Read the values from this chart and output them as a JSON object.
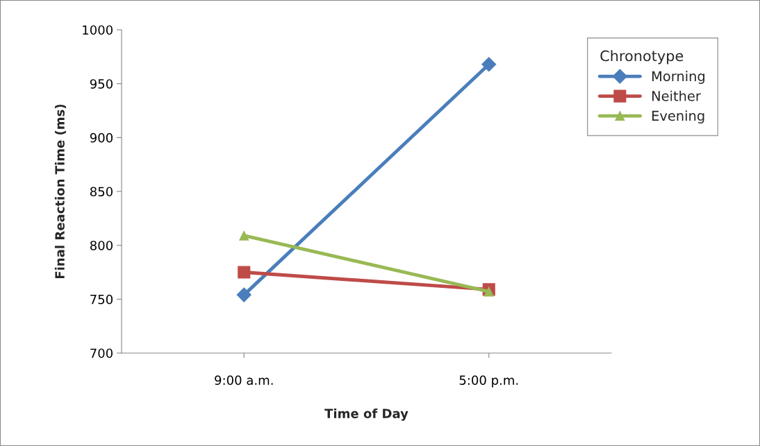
{
  "chart_data": {
    "type": "line",
    "xlabel": "Time of Day",
    "ylabel": "Final Reaction Time (ms)",
    "legend_title": "Chronotype",
    "categories": [
      "9:00 a.m.",
      "5:00 p.m."
    ],
    "series": [
      {
        "name": "Morning",
        "color": "#4a7ebb",
        "marker": "diamond",
        "values": [
          754,
          968
        ]
      },
      {
        "name": "Neither",
        "color": "#be4b48",
        "marker": "square",
        "values": [
          775,
          759
        ]
      },
      {
        "name": "Evening",
        "color": "#98b954",
        "marker": "triangle",
        "values": [
          809,
          757
        ]
      }
    ],
    "ylim": [
      700,
      1000
    ],
    "yticks": [
      700,
      750,
      800,
      850,
      900,
      950,
      1000
    ],
    "grid": false,
    "legend": "top right",
    "line_style": "solid"
  }
}
